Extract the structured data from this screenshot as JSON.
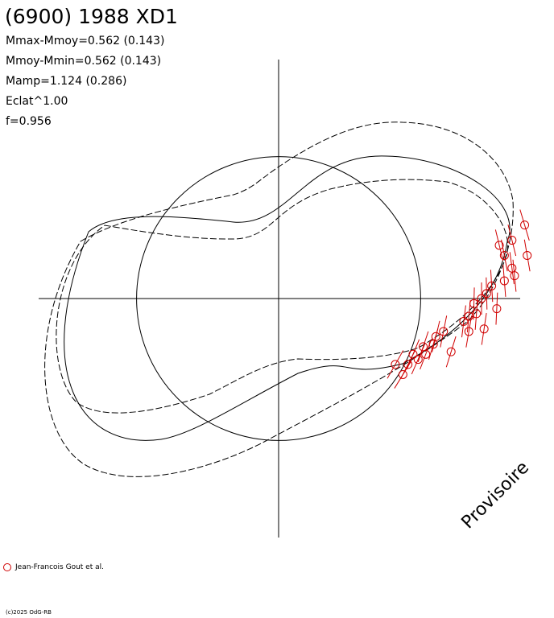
{
  "header": {
    "title": "(6900) 1988 XD1",
    "lines": [
      "Mmax-Mmoy=0.562 (0.143)",
      "Mmoy-Mmin=0.562 (0.143)",
      "Mamp=1.124 (0.286)",
      "Eclat^1.00",
      "f=0.956"
    ]
  },
  "watermark": "Provisoire",
  "legend": {
    "label": "Jean-Francois Gout et al.",
    "marker_color": "#d00000"
  },
  "copyright": "(c)2025 OdG-RB",
  "chart_data": {
    "type": "scatter",
    "title": "(6900) 1988 XD1",
    "xlabel": "",
    "ylabel": "",
    "axis_range": [
      -1.1,
      1.1
    ],
    "reference_circle_radius": 0.56,
    "grid": false,
    "colors": {
      "observations": "#d00000",
      "model": "#000000"
    },
    "series": [
      {
        "name": "Jean-Francois Gout et al.",
        "points": [
          [
            0.97,
            0.29
          ],
          [
            0.92,
            0.23
          ],
          [
            0.87,
            0.21
          ],
          [
            0.89,
            0.17
          ],
          [
            0.98,
            0.17
          ],
          [
            0.92,
            0.12
          ],
          [
            0.93,
            0.09
          ],
          [
            0.89,
            0.07
          ],
          [
            0.84,
            0.05
          ],
          [
            0.82,
            0.02
          ],
          [
            0.8,
            0.0
          ],
          [
            0.77,
            -0.02
          ],
          [
            0.86,
            -0.04
          ],
          [
            0.78,
            -0.06
          ],
          [
            0.75,
            -0.07
          ],
          [
            0.73,
            -0.09
          ],
          [
            0.81,
            -0.12
          ],
          [
            0.75,
            -0.13
          ],
          [
            0.65,
            -0.13
          ],
          [
            0.62,
            -0.15
          ],
          [
            0.61,
            -0.18
          ],
          [
            0.57,
            -0.19
          ],
          [
            0.53,
            -0.22
          ],
          [
            0.68,
            -0.21
          ],
          [
            0.55,
            -0.24
          ],
          [
            0.51,
            -0.26
          ],
          [
            0.46,
            -0.26
          ],
          [
            0.49,
            -0.3
          ],
          [
            0.58,
            -0.22
          ]
        ]
      }
    ]
  }
}
